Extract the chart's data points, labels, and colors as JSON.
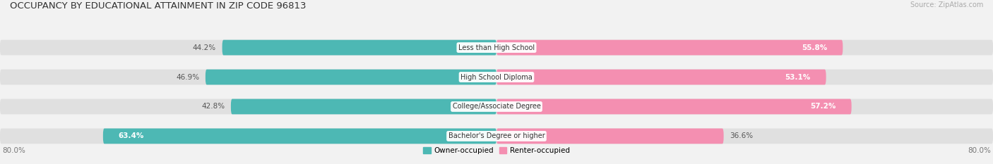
{
  "title": "OCCUPANCY BY EDUCATIONAL ATTAINMENT IN ZIP CODE 96813",
  "source": "Source: ZipAtlas.com",
  "categories": [
    "Less than High School",
    "High School Diploma",
    "College/Associate Degree",
    "Bachelor's Degree or higher"
  ],
  "owner_values": [
    44.2,
    46.9,
    42.8,
    63.4
  ],
  "renter_values": [
    55.8,
    53.1,
    57.2,
    36.6
  ],
  "owner_color": "#4db8b4",
  "renter_color": "#f48fb1",
  "owner_label": "Owner-occupied",
  "renter_label": "Renter-occupied",
  "xlim_left": -80.0,
  "xlim_right": 80.0,
  "axis_left_label": "80.0%",
  "axis_right_label": "80.0%",
  "background_color": "#f2f2f2",
  "bar_bg_color": "#e0e0e0",
  "title_fontsize": 9.5,
  "source_fontsize": 7,
  "pct_fontsize": 7.5,
  "cat_fontsize": 7,
  "tick_fontsize": 7.5,
  "bar_height": 0.52,
  "bar_gap": 0.18,
  "rounding_size": 0.22
}
